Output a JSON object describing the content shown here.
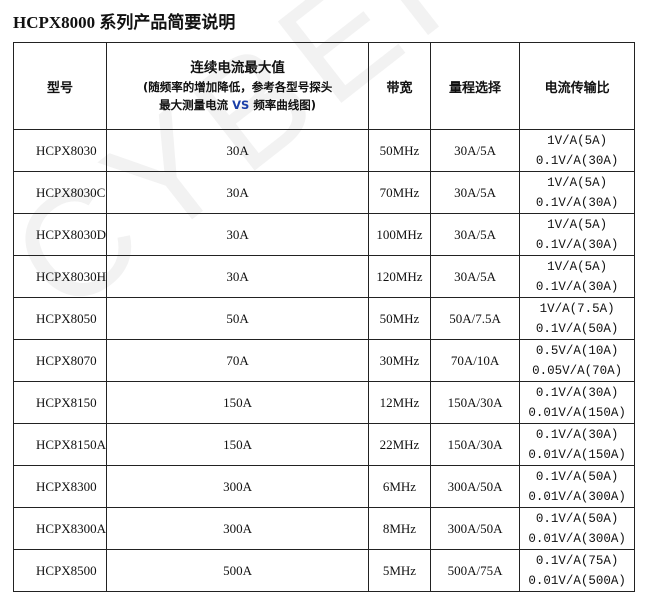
{
  "title": "HCPX8000 系列产品简要说明",
  "watermark": "CYBERTEK",
  "headers": {
    "model": "型号",
    "current_main": "连续电流最大值",
    "current_sub1": "(随频率的增加降低，参考各型号探头",
    "current_sub2": "最大测量电流",
    "current_vs": "VS",
    "current_sub3": "频率曲线图)",
    "bandwidth": "带宽",
    "range": "量程选择",
    "ratio": "电流传输比"
  },
  "rows": [
    {
      "model": "HCPX8030",
      "current": "30A",
      "bandwidth": "50MHz",
      "range": "30A/5A",
      "ratio1": "1V/A(5A)",
      "ratio2": "0.1V/A(30A)"
    },
    {
      "model": "HCPX8030C",
      "current": "30A",
      "bandwidth": "70MHz",
      "range": "30A/5A",
      "ratio1": "1V/A(5A)",
      "ratio2": "0.1V/A(30A)"
    },
    {
      "model": "HCPX8030D",
      "current": "30A",
      "bandwidth": "100MHz",
      "range": "30A/5A",
      "ratio1": "1V/A(5A)",
      "ratio2": "0.1V/A(30A)"
    },
    {
      "model": "HCPX8030H",
      "current": "30A",
      "bandwidth": "120MHz",
      "range": "30A/5A",
      "ratio1": "1V/A(5A)",
      "ratio2": "0.1V/A(30A)"
    },
    {
      "model": "HCPX8050",
      "current": "50A",
      "bandwidth": "50MHz",
      "range": "50A/7.5A",
      "ratio1": "1V/A(7.5A)",
      "ratio2": "0.1V/A(50A)"
    },
    {
      "model": "HCPX8070",
      "current": "70A",
      "bandwidth": "30MHz",
      "range": "70A/10A",
      "ratio1": "0.5V/A(10A)",
      "ratio2": "0.05V/A(70A)"
    },
    {
      "model": "HCPX8150",
      "current": "150A",
      "bandwidth": "12MHz",
      "range": "150A/30A",
      "ratio1": "0.1V/A(30A)",
      "ratio2": "0.01V/A(150A)"
    },
    {
      "model": "HCPX8150A",
      "current": "150A",
      "bandwidth": "22MHz",
      "range": "150A/30A",
      "ratio1": "0.1V/A(30A)",
      "ratio2": "0.01V/A(150A)"
    },
    {
      "model": "HCPX8300",
      "current": "300A",
      "bandwidth": "6MHz",
      "range": "300A/50A",
      "ratio1": "0.1V/A(50A)",
      "ratio2": "0.01V/A(300A)"
    },
    {
      "model": "HCPX8300A",
      "current": "300A",
      "bandwidth": "8MHz",
      "range": "300A/50A",
      "ratio1": "0.1V/A(50A)",
      "ratio2": "0.01V/A(300A)"
    },
    {
      "model": "HCPX8500",
      "current": "500A",
      "bandwidth": "5MHz",
      "range": "500A/75A",
      "ratio1": "0.1V/A(75A)",
      "ratio2": "0.01V/A(500A)"
    }
  ]
}
